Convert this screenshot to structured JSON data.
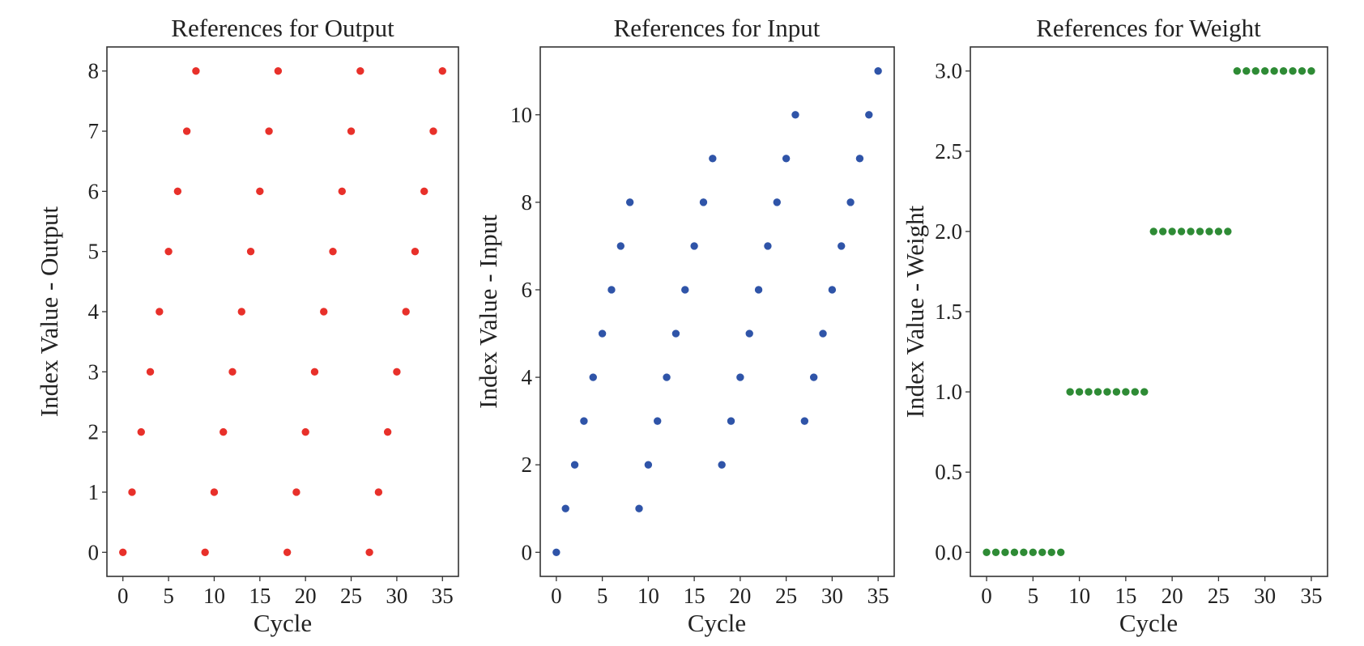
{
  "chart_data": [
    {
      "type": "scatter",
      "title": "References for Output",
      "xlabel": "Cycle",
      "ylabel": "Index Value - Output",
      "xlim": [
        -1.75,
        36.75
      ],
      "ylim": [
        -0.4,
        8.4
      ],
      "xticks": [
        0,
        5,
        10,
        15,
        20,
        25,
        30,
        35
      ],
      "xtick_labels": [
        "0",
        "5",
        "10",
        "15",
        "20",
        "25",
        "30",
        "35"
      ],
      "yticks": [
        0,
        1,
        2,
        3,
        4,
        5,
        6,
        7,
        8
      ],
      "ytick_labels": [
        "0",
        "1",
        "2",
        "3",
        "4",
        "5",
        "6",
        "7",
        "8"
      ],
      "grid": false,
      "color": "#e8302a",
      "x": [
        0,
        1,
        2,
        3,
        4,
        5,
        6,
        7,
        8,
        9,
        10,
        11,
        12,
        13,
        14,
        15,
        16,
        17,
        18,
        19,
        20,
        21,
        22,
        23,
        24,
        25,
        26,
        27,
        28,
        29,
        30,
        31,
        32,
        33,
        34,
        35
      ],
      "y": [
        0,
        1,
        2,
        3,
        4,
        5,
        6,
        7,
        8,
        0,
        1,
        2,
        3,
        4,
        5,
        6,
        7,
        8,
        0,
        1,
        2,
        3,
        4,
        5,
        6,
        7,
        8,
        0,
        1,
        2,
        3,
        4,
        5,
        6,
        7,
        8
      ]
    },
    {
      "type": "scatter",
      "title": "References for Input",
      "xlabel": "Cycle",
      "ylabel": "Index Value - Input",
      "xlim": [
        -1.75,
        36.75
      ],
      "ylim": [
        -0.55,
        11.55
      ],
      "xticks": [
        0,
        5,
        10,
        15,
        20,
        25,
        30,
        35
      ],
      "xtick_labels": [
        "0",
        "5",
        "10",
        "15",
        "20",
        "25",
        "30",
        "35"
      ],
      "yticks": [
        0,
        2,
        4,
        6,
        8,
        10
      ],
      "ytick_labels": [
        "0",
        "2",
        "4",
        "6",
        "8",
        "10"
      ],
      "grid": false,
      "color": "#2f54a8",
      "x": [
        0,
        1,
        2,
        3,
        4,
        5,
        6,
        7,
        8,
        9,
        10,
        11,
        12,
        13,
        14,
        15,
        16,
        17,
        18,
        19,
        20,
        21,
        22,
        23,
        24,
        25,
        26,
        27,
        28,
        29,
        30,
        31,
        32,
        33,
        34,
        35
      ],
      "y": [
        0,
        1,
        2,
        3,
        4,
        5,
        6,
        7,
        8,
        1,
        2,
        3,
        4,
        5,
        6,
        7,
        8,
        9,
        2,
        3,
        4,
        5,
        6,
        7,
        8,
        9,
        10,
        3,
        4,
        5,
        6,
        7,
        8,
        9,
        10,
        11
      ]
    },
    {
      "type": "scatter",
      "title": "References for Weight",
      "xlabel": "Cycle",
      "ylabel": "Index Value - Weight",
      "xlim": [
        -1.75,
        36.75
      ],
      "ylim": [
        -0.15,
        3.15
      ],
      "xticks": [
        0,
        5,
        10,
        15,
        20,
        25,
        30,
        35
      ],
      "xtick_labels": [
        "0",
        "5",
        "10",
        "15",
        "20",
        "25",
        "30",
        "35"
      ],
      "yticks": [
        0,
        0.5,
        1,
        1.5,
        2,
        2.5,
        3
      ],
      "ytick_labels": [
        "0.0",
        "0.5",
        "1.0",
        "1.5",
        "2.0",
        "2.5",
        "3.0"
      ],
      "grid": false,
      "color": "#2e8b35",
      "x": [
        0,
        1,
        2,
        3,
        4,
        5,
        6,
        7,
        8,
        9,
        10,
        11,
        12,
        13,
        14,
        15,
        16,
        17,
        18,
        19,
        20,
        21,
        22,
        23,
        24,
        25,
        26,
        27,
        28,
        29,
        30,
        31,
        32,
        33,
        34,
        35
      ],
      "y": [
        0,
        0,
        0,
        0,
        0,
        0,
        0,
        0,
        0,
        1,
        1,
        1,
        1,
        1,
        1,
        1,
        1,
        1,
        2,
        2,
        2,
        2,
        2,
        2,
        2,
        2,
        2,
        3,
        3,
        3,
        3,
        3,
        3,
        3,
        3,
        3
      ]
    }
  ]
}
